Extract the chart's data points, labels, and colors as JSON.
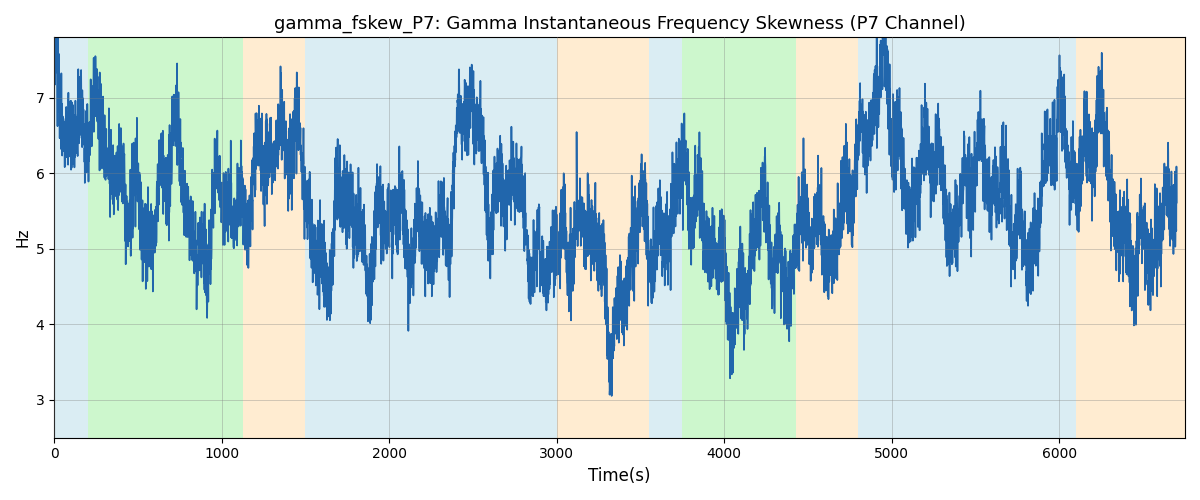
{
  "title": "gamma_fskew_P7: Gamma Instantaneous Frequency Skewness (P7 Channel)",
  "xlabel": "Time(s)",
  "ylabel": "Hz",
  "line_color": "#2166ac",
  "line_width": 1.2,
  "figsize": [
    12.0,
    5.0
  ],
  "dpi": 100,
  "ylim": [
    2.5,
    7.8
  ],
  "xlim": [
    0,
    6750
  ],
  "bg_regions": [
    {
      "xstart": 0,
      "xend": 200,
      "color": "#add8e6",
      "alpha": 0.45
    },
    {
      "xstart": 200,
      "xend": 1130,
      "color": "#90ee90",
      "alpha": 0.45
    },
    {
      "xstart": 1130,
      "xend": 1500,
      "color": "#ffd59b",
      "alpha": 0.45
    },
    {
      "xstart": 1500,
      "xend": 3000,
      "color": "#add8e6",
      "alpha": 0.45
    },
    {
      "xstart": 3000,
      "xend": 3550,
      "color": "#ffd59b",
      "alpha": 0.45
    },
    {
      "xstart": 3550,
      "xend": 3750,
      "color": "#add8e6",
      "alpha": 0.45
    },
    {
      "xstart": 3750,
      "xend": 4430,
      "color": "#90ee90",
      "alpha": 0.45
    },
    {
      "xstart": 4430,
      "xend": 4800,
      "color": "#ffd59b",
      "alpha": 0.45
    },
    {
      "xstart": 4800,
      "xend": 6100,
      "color": "#add8e6",
      "alpha": 0.45
    },
    {
      "xstart": 6100,
      "xend": 6750,
      "color": "#ffd59b",
      "alpha": 0.45
    }
  ],
  "yticks": [
    3,
    4,
    5,
    6,
    7
  ],
  "xticks": [
    0,
    1000,
    2000,
    3000,
    4000,
    5000,
    6000
  ],
  "title_fontsize": 13,
  "xlabel_fontsize": 12,
  "ylabel_fontsize": 11
}
